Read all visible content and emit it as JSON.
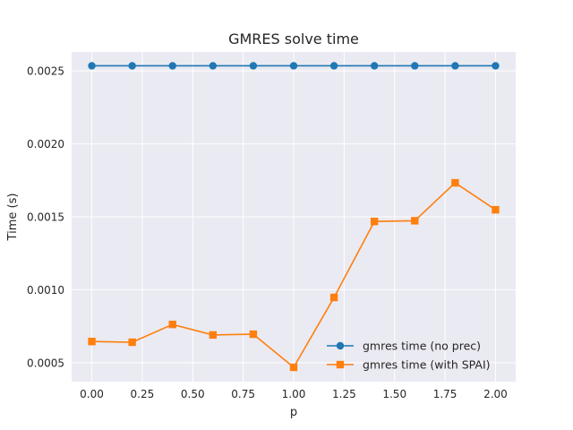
{
  "chart_data": {
    "type": "line",
    "title": "GMRES solve time",
    "xlabel": "p",
    "ylabel": "Time (s)",
    "x": [
      0.0,
      0.2,
      0.4,
      0.6,
      0.8,
      1.0,
      1.2,
      1.4,
      1.6,
      1.8,
      2.0
    ],
    "xlim": [
      -0.1,
      2.1
    ],
    "ylim": [
      0.00037,
      0.00263
    ],
    "x_ticks": [
      0.0,
      0.25,
      0.5,
      0.75,
      1.0,
      1.25,
      1.5,
      1.75,
      2.0
    ],
    "x_tick_labels": [
      "0.00",
      "0.25",
      "0.50",
      "0.75",
      "1.00",
      "1.25",
      "1.50",
      "1.75",
      "2.00"
    ],
    "y_ticks": [
      0.0005,
      0.001,
      0.0015,
      0.002,
      0.0025
    ],
    "y_tick_labels": [
      "0.0005",
      "0.0010",
      "0.0015",
      "0.0020",
      "0.0025"
    ],
    "grid": true,
    "legend_position": "lower-right",
    "series": [
      {
        "name": "gmres time (no prec)",
        "marker": "circle",
        "color": "#1f77b4",
        "values": [
          0.002535,
          0.002535,
          0.002535,
          0.002535,
          0.002535,
          0.002535,
          0.002535,
          0.002535,
          0.002535,
          0.002535,
          0.002535
        ]
      },
      {
        "name": "gmres time (with SPAI)",
        "marker": "square",
        "color": "#ff7f0e",
        "values": [
          0.000645,
          0.00064,
          0.000762,
          0.00069,
          0.000695,
          0.000468,
          0.000947,
          0.001468,
          0.001473,
          0.001733,
          0.001548
        ]
      }
    ]
  },
  "colors": {
    "plot_background": "#eaeaf2",
    "grid": "#ffffff",
    "text": "#262626"
  }
}
